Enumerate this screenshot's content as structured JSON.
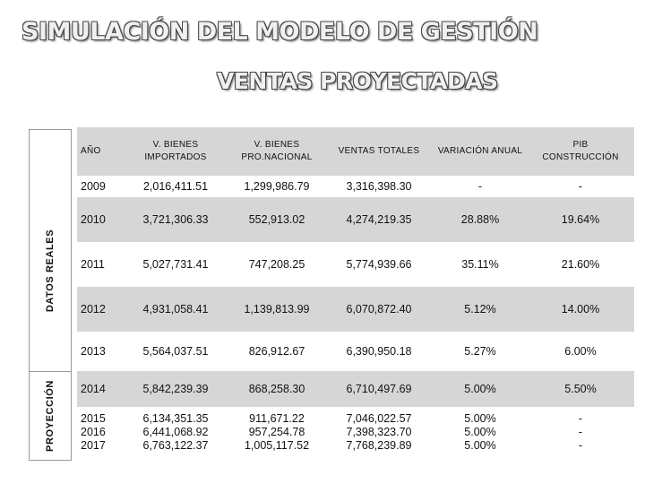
{
  "title": "SIMULACIÓN DEL MODELO DE GESTIÓN",
  "subtitle": "VENTAS PROYECTADAS",
  "side_labels": {
    "real": "DATOS REALES",
    "proyeccion": "PROYECCIÓN"
  },
  "headers": {
    "anio": "AÑO",
    "importados_1": "V. BIENES",
    "importados_2": "IMPORTADOS",
    "nacional_1": "V. BIENES",
    "nacional_2": "PRO.NACIONAL",
    "totales": "VENTAS TOTALES",
    "variacion": "VARIACIÓN ANUAL",
    "pib_1": "PIB",
    "pib_2": "CONSTRUCCIÓN"
  },
  "rows": [
    {
      "anio": "2009",
      "importados": "2,016,411.51",
      "nacional": "1,299,986.79",
      "totales": "3,316,398.30",
      "variacion": "-",
      "pib": "-"
    },
    {
      "anio": "2010",
      "importados": "3,721,306.33",
      "nacional": "552,913.02",
      "totales": "4,274,219.35",
      "variacion": "28.88%",
      "pib": "19.64%"
    },
    {
      "anio": "2011",
      "importados": "5,027,731.41",
      "nacional": "747,208.25",
      "totales": "5,774,939.66",
      "variacion": "35.11%",
      "pib": "21.60%"
    },
    {
      "anio": "2012",
      "importados": "4,931,058.41",
      "nacional": "1,139,813.99",
      "totales": "6,070,872.40",
      "variacion": "5.12%",
      "pib": "14.00%"
    },
    {
      "anio": "2013",
      "importados": "5,564,037.51",
      "nacional": "826,912.67",
      "totales": "6,390,950.18",
      "variacion": "5.27%",
      "pib": "6.00%"
    },
    {
      "anio": "2014",
      "importados": "5,842,239.39",
      "nacional": "868,258.30",
      "totales": "6,710,497.69",
      "variacion": "5.00%",
      "pib": "5.50%"
    },
    {
      "anio": "2015",
      "importados": "6,134,351.35",
      "nacional": "911,671.22",
      "totales": "7,046,022.57",
      "variacion": "5.00%",
      "pib": "-"
    },
    {
      "anio": "2016",
      "importados": "6,441,068.92",
      "nacional": "957,254.78",
      "totales": "7,398,323.70",
      "variacion": "5.00%",
      "pib": "-"
    },
    {
      "anio": "2017",
      "importados": "6,763,122.37",
      "nacional": "1,005,117.52",
      "totales": "7,768,239.89",
      "variacion": "5.00%",
      "pib": "-"
    }
  ]
}
